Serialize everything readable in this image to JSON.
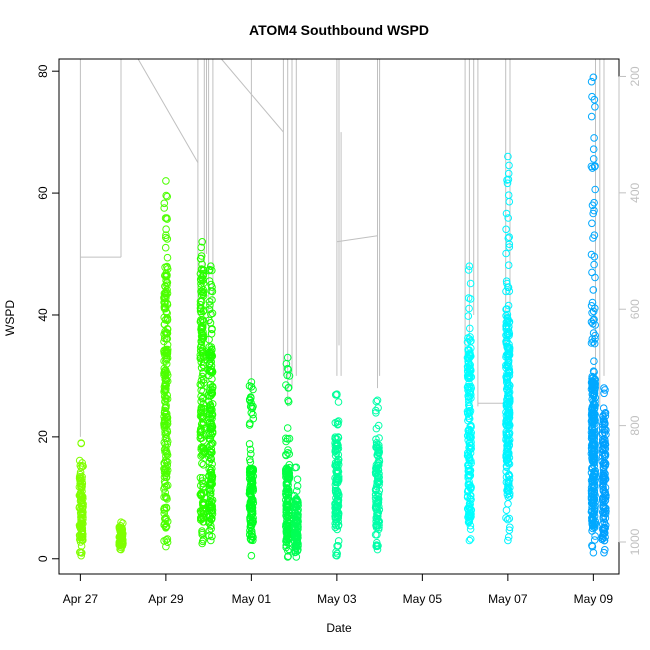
{
  "chart_data": {
    "type": "scatter",
    "title": "ATOM4 Southbound WSPD",
    "xlabel": "Date",
    "ylabel": "WSPD",
    "x_ticks": [
      "Apr 27",
      "Apr 29",
      "May 01",
      "May 03",
      "May 05",
      "May 07",
      "May 09"
    ],
    "x_range_days": [
      -0.5,
      12.6
    ],
    "y_ticks": [
      0,
      20,
      40,
      60,
      80
    ],
    "ylim": [
      -2.5,
      82
    ],
    "right_axis": {
      "ticks": [
        200,
        400,
        600,
        800,
        1000
      ],
      "range": [
        1055,
        170
      ],
      "description": "secondary axis for grey line trace"
    },
    "grid": false,
    "point_style": "open-circle",
    "clusters": [
      {
        "day": 0.02,
        "ymin": 0.5,
        "ymax": 19,
        "dense_min": 2,
        "dense_max": 14,
        "color": "#80ff00"
      },
      {
        "day": 0.95,
        "ymin": 1.5,
        "ymax": 6,
        "dense_min": 2,
        "dense_max": 5.5,
        "color": "#7fff00"
      },
      {
        "day": 2.0,
        "ymin": 2,
        "ymax": 62,
        "dense_min": 5,
        "dense_max": 48,
        "color": "#4cff00"
      },
      {
        "day": 2.85,
        "ymin": 2.5,
        "ymax": 52,
        "dense_min": 6,
        "dense_max": 48,
        "color": "#2bff00"
      },
      {
        "day": 3.05,
        "ymin": 3,
        "ymax": 48,
        "dense_min": 6,
        "dense_max": 35,
        "color": "#1fff00"
      },
      {
        "day": 4.0,
        "ymin": 0.5,
        "ymax": 29,
        "dense_min": 3,
        "dense_max": 15,
        "color": "#00ff22"
      },
      {
        "day": 4.85,
        "ymin": 0.3,
        "ymax": 33,
        "dense_min": 2,
        "dense_max": 15,
        "color": "#00ff44"
      },
      {
        "day": 5.05,
        "ymin": 0.3,
        "ymax": 15,
        "dense_min": 1,
        "dense_max": 10,
        "color": "#00ff55"
      },
      {
        "day": 6.0,
        "ymin": 0.5,
        "ymax": 27,
        "dense_min": 5,
        "dense_max": 20,
        "color": "#00ff9a"
      },
      {
        "day": 6.95,
        "ymin": 1.5,
        "ymax": 26,
        "dense_min": 5,
        "dense_max": 20,
        "color": "#00ffaa"
      },
      {
        "day": 9.1,
        "ymin": 3,
        "ymax": 48,
        "dense_min": 6,
        "dense_max": 35,
        "color": "#00ffff"
      },
      {
        "day": 10.0,
        "ymin": 3,
        "ymax": 66,
        "dense_min": 10,
        "dense_max": 40,
        "color": "#00f4ff"
      },
      {
        "day": 12.0,
        "ymin": 1,
        "ymax": 79,
        "dense_min": 5,
        "dense_max": 30,
        "color": "#00a8ff"
      },
      {
        "day": 12.25,
        "ymin": 1,
        "ymax": 28,
        "dense_min": 3,
        "dense_max": 25,
        "color": "#00a0ff"
      }
    ],
    "grey_line": {
      "color": "#c0c0c0",
      "segments": [
        {
          "x": [
            0.0,
            0.0
          ],
          "y": [
            82,
            20
          ]
        },
        {
          "x": [
            0.0,
            0.95
          ],
          "y": [
            49.5,
            49.5
          ]
        },
        {
          "x": [
            0.95,
            0.95
          ],
          "y": [
            82,
            49.5
          ]
        },
        {
          "x": [
            1.35,
            2.75
          ],
          "y": [
            82,
            65
          ]
        },
        {
          "x": [
            2.75,
            2.75
          ],
          "y": [
            82,
            40
          ]
        },
        {
          "x": [
            2.9,
            2.9
          ],
          "y": [
            82,
            45
          ]
        },
        {
          "x": [
            2.95,
            2.95
          ],
          "y": [
            82,
            50
          ]
        },
        {
          "x": [
            3.0,
            3.0
          ],
          "y": [
            82,
            35
          ]
        },
        {
          "x": [
            3.1,
            3.1
          ],
          "y": [
            82,
            40
          ]
        },
        {
          "x": [
            3.3,
            4.75
          ],
          "y": [
            82,
            70
          ]
        },
        {
          "x": [
            4.0,
            4.0
          ],
          "y": [
            82,
            25
          ]
        },
        {
          "x": [
            4.75,
            4.75
          ],
          "y": [
            82,
            30
          ]
        },
        {
          "x": [
            4.85,
            4.85
          ],
          "y": [
            82,
            25
          ]
        },
        {
          "x": [
            4.95,
            4.95
          ],
          "y": [
            82,
            28
          ]
        },
        {
          "x": [
            5.05,
            5.05
          ],
          "y": [
            82,
            30
          ]
        },
        {
          "x": [
            6.0,
            6.0
          ],
          "y": [
            82,
            30
          ]
        },
        {
          "x": [
            6.05,
            6.05
          ],
          "y": [
            82,
            35
          ]
        },
        {
          "x": [
            6.1,
            6.1
          ],
          "y": [
            70,
            30
          ]
        },
        {
          "x": [
            6.0,
            6.95
          ],
          "y": [
            52,
            53
          ]
        },
        {
          "x": [
            6.95,
            6.95
          ],
          "y": [
            82,
            28
          ]
        },
        {
          "x": [
            7.0,
            7.0
          ],
          "y": [
            82,
            30
          ]
        },
        {
          "x": [
            9.0,
            9.0
          ],
          "y": [
            82,
            30
          ]
        },
        {
          "x": [
            9.1,
            9.1
          ],
          "y": [
            82,
            35
          ]
        },
        {
          "x": [
            9.2,
            9.2
          ],
          "y": [
            82,
            40
          ]
        },
        {
          "x": [
            9.3,
            9.3
          ],
          "y": [
            82,
            25
          ]
        },
        {
          "x": [
            9.3,
            9.9
          ],
          "y": [
            25.5,
            25.5
          ]
        },
        {
          "x": [
            9.95,
            9.95
          ],
          "y": [
            82,
            30
          ]
        },
        {
          "x": [
            10.05,
            10.05
          ],
          "y": [
            82,
            40
          ]
        },
        {
          "x": [
            12.05,
            12.05
          ],
          "y": [
            82,
            20
          ]
        },
        {
          "x": [
            12.15,
            12.15
          ],
          "y": [
            82,
            25
          ]
        },
        {
          "x": [
            12.25,
            12.25
          ],
          "y": [
            82,
            30
          ]
        }
      ]
    }
  }
}
